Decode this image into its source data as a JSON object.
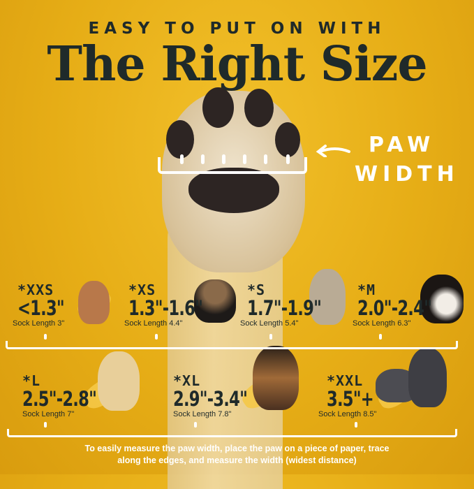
{
  "header": {
    "subtitle": "EASY TO PUT ON WITH",
    "title": "The Right Size"
  },
  "paw_label": {
    "line1": "PAW",
    "line2": "WIDTH",
    "icon": "arrow-left-icon"
  },
  "sizes": [
    {
      "label": "*XXS",
      "range": "<1.3\"",
      "sock": "Sock Length 3\"",
      "dog": "chihuahua"
    },
    {
      "label": "*XS",
      "range": "1.3\"-1.6\"",
      "sock": "Sock Length 4.4\"",
      "dog": "yorkshire-terrier"
    },
    {
      "label": "*S",
      "range": "1.7\"-1.9\"",
      "sock": "Sock Length 5.4\"",
      "dog": "french-bulldog"
    },
    {
      "label": "*M",
      "range": "2.0\"-2.4\"",
      "sock": "Sock Length 6.3\"",
      "dog": "bernese-mountain-dog"
    },
    {
      "label": "*L",
      "range": "2.5\"-2.8\"",
      "sock": "Sock Length 7\"",
      "dog": "golden-retriever"
    },
    {
      "label": "*XL",
      "range": "2.9\"-3.4\"",
      "sock": "Sock Length 7.8\"",
      "dog": "german-shepherd"
    },
    {
      "label": "*XXL",
      "range": "3.5\"+",
      "sock": "Sock Length 8.5\"",
      "dog": "great-dane"
    }
  ],
  "footer": {
    "line1": "To easily measure the paw width, place the paw on a piece of paper, trace",
    "line2": "along the edges, and measure the width (widest distance)"
  },
  "colors": {
    "background": "#e6ad16",
    "text_dark": "#1f2a2a",
    "accent": "#ffffff"
  }
}
